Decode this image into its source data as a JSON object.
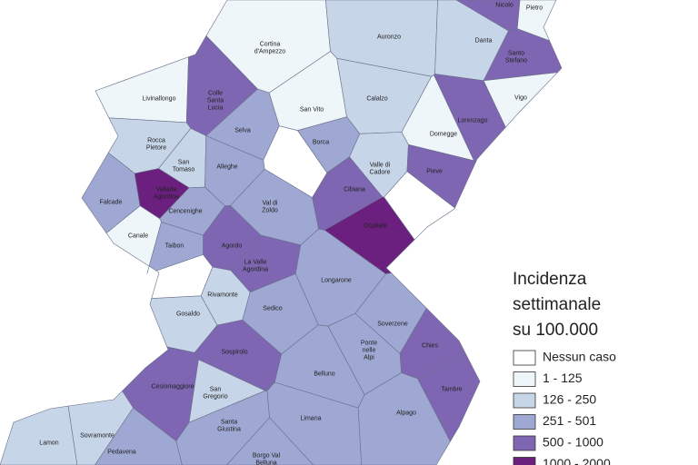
{
  "map": {
    "regions": [
      {
        "label": [
          "Cortina",
          "d'Ampezzo"
        ],
        "class": 1
      },
      {
        "label": [
          "Auronzo"
        ],
        "class": 2
      },
      {
        "label": [
          "Nicolo"
        ],
        "class": 4
      },
      {
        "label": [
          "Pietro"
        ],
        "class": 1
      },
      {
        "label": [
          "Danta"
        ],
        "class": 2
      },
      {
        "label": [
          "Santo",
          "Stefano"
        ],
        "class": 4
      },
      {
        "label": [
          "Livinallongo"
        ],
        "class": 1
      },
      {
        "label": [
          "San Vito"
        ],
        "class": 1
      },
      {
        "label": [
          "Calalzo"
        ],
        "class": 2
      },
      {
        "label": [
          "Vigo"
        ],
        "class": 1
      },
      {
        "label": [
          "Colle",
          "Santa",
          "Lucia"
        ],
        "class": 4
      },
      {
        "label": [
          "Selva"
        ],
        "class": 3
      },
      {
        "label": [
          "Lorenzago"
        ],
        "class": 4
      },
      {
        "label": [
          "Rocca",
          "Pietore"
        ],
        "class": 2
      },
      {
        "label": [
          "Borca"
        ],
        "class": 3
      },
      {
        "label": [
          "Domegge"
        ],
        "class": 1
      },
      {
        "label": [
          "San",
          "Tomaso"
        ],
        "class": 2
      },
      {
        "label": [
          "Alleghe"
        ],
        "class": 3
      },
      {
        "label": [
          "Valle di",
          "Cadore"
        ],
        "class": 2
      },
      {
        "label": [
          "Pieve"
        ],
        "class": 4
      },
      {
        "label": [
          "Falcade"
        ],
        "class": 3
      },
      {
        "label": [
          "Vallada",
          "Agordina"
        ],
        "class": 5
      },
      {
        "label": [
          "Cibiana"
        ],
        "class": 4
      },
      {
        "label": [
          "Cencenighe"
        ],
        "class": 3
      },
      {
        "label": [
          "Val di",
          "Zoldo"
        ],
        "class": 3
      },
      {
        "label": [
          "Ospitale"
        ],
        "class": 5
      },
      {
        "label": [
          "Canale"
        ],
        "class": 1
      },
      {
        "label": [
          "Agordo"
        ],
        "class": 4
      },
      {
        "label": [
          "Taibon"
        ],
        "class": 3
      },
      {
        "label": [
          "La Valle",
          "Agordina"
        ],
        "class": 4
      },
      {
        "label": [
          "Longarone"
        ],
        "class": 3
      },
      {
        "label": [
          "Rivamonte"
        ],
        "class": 2
      },
      {
        "label": [
          "Gosaldo"
        ],
        "class": 2
      },
      {
        "label": [
          "Sedico"
        ],
        "class": 3
      },
      {
        "label": [
          "Soverzene"
        ],
        "class": 3
      },
      {
        "label": [
          "Chies"
        ],
        "class": 4
      },
      {
        "label": [
          "Ponte",
          "nelle",
          "Alpi"
        ],
        "class": 3
      },
      {
        "label": [
          "Sospirolo"
        ],
        "class": 4
      },
      {
        "label": [
          "Belluno"
        ],
        "class": 3
      },
      {
        "label": [
          "Tambre"
        ],
        "class": 4
      },
      {
        "label": [
          "Cesiomaggiore"
        ],
        "class": 4
      },
      {
        "label": [
          "San",
          "Gregorio"
        ],
        "class": 2
      },
      {
        "label": [
          "Alpago"
        ],
        "class": 3
      },
      {
        "label": [
          "Santa",
          "Giustina"
        ],
        "class": 3
      },
      {
        "label": [
          "Limana"
        ],
        "class": 3
      },
      {
        "label": [
          "Lamon"
        ],
        "class": 2
      },
      {
        "label": [
          "Sovramonte"
        ],
        "class": 2
      },
      {
        "label": [
          "Pedavena"
        ],
        "class": 3
      },
      {
        "label": [
          "Borgo Val",
          "Belluna"
        ],
        "class": 3
      },
      {
        "label": null,
        "class": 0
      },
      {
        "label": null,
        "class": 0
      },
      {
        "label": null,
        "class": 0
      }
    ],
    "legend": {
      "title": [
        "Incidenza",
        "settimanale",
        "su 100.000"
      ],
      "items": [
        {
          "label": "Nessun caso",
          "color": "#ffffff"
        },
        {
          "label": "1 - 125",
          "color": "#eef6fa"
        },
        {
          "label": "126 - 250",
          "color": "#c7d5e8"
        },
        {
          "label": "251 - 501",
          "color": "#9ea8d3"
        },
        {
          "label": "500 - 1000",
          "color": "#7e66b3"
        },
        {
          "label": "1000 - 2000",
          "color": "#6b1f7e"
        }
      ]
    }
  }
}
